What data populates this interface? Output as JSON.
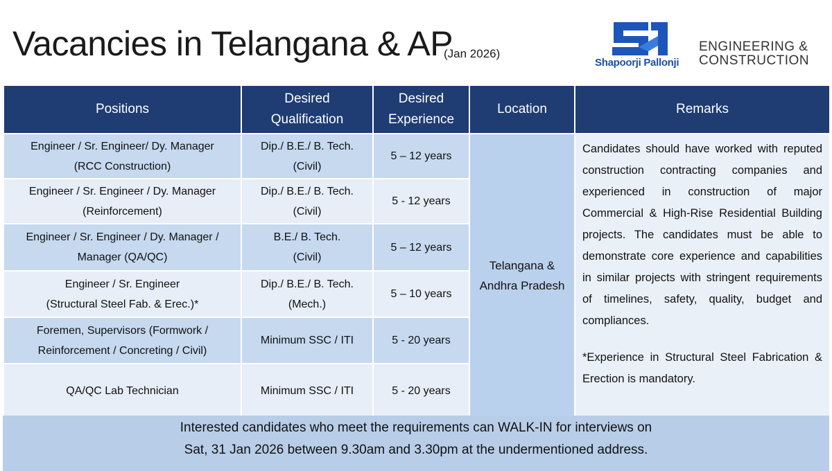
{
  "header": {
    "title": "Vacancies in Telangana & AP",
    "subtitle": "(Jan 2026)",
    "logo_name": "Shapoorji Pallonji",
    "division": [
      "ENGINEERING &",
      "CONSTRUCTION"
    ]
  },
  "table": {
    "columns": [
      [
        "Positions"
      ],
      [
        "Desired",
        "Qualification"
      ],
      [
        "Desired",
        "Experience"
      ],
      [
        "Location"
      ],
      [
        "Remarks"
      ]
    ],
    "rows": [
      {
        "position": [
          "Engineer / Sr. Engineer/ Dy. Manager",
          "(RCC Construction)"
        ],
        "qualification": [
          "Dip./ B.E./ B. Tech.",
          "(Civil)"
        ],
        "experience": "5 – 12 years"
      },
      {
        "position": [
          "Engineer / Sr. Engineer / Dy. Manager",
          "(Reinforcement)"
        ],
        "qualification": [
          "Dip./ B.E./ B. Tech.",
          "(Civil)"
        ],
        "experience": "5 - 12 years"
      },
      {
        "position": [
          "Engineer / Sr. Engineer / Dy. Manager /",
          "Manager (QA/QC)"
        ],
        "qualification": [
          "B.E./ B. Tech.",
          "(Civil)"
        ],
        "experience": "5 – 12 years"
      },
      {
        "position": [
          "Engineer / Sr. Engineer",
          "(Structural Steel Fab. & Erec.)*"
        ],
        "qualification": [
          "Dip./ B.E./ B. Tech.",
          "(Mech.)"
        ],
        "experience": "5 – 10 years"
      },
      {
        "position": [
          "Foremen, Supervisors (Formwork /",
          "Reinforcement / Concreting / Civil)"
        ],
        "qualification": [
          "Minimum SSC / ITI"
        ],
        "experience": "5 - 20 years"
      },
      {
        "position": [
          "QA/QC Lab Technician"
        ],
        "qualification": [
          "Minimum SSC / ITI"
        ],
        "experience": "5 - 20 years"
      }
    ],
    "location": [
      "Telangana &",
      "Andhra Pradesh"
    ],
    "remarks": "Candidates should have worked with reputed construction contracting companies and experienced in construction of major Commercial & High-Rise Residential Building projects. The candidates must be able to demonstrate core experience and capabilities in similar projects with stringent requirements of timelines, safety, quality, budget and compliances.",
    "note": "*Experience in Structural Steel Fabrication & Erection is mandatory."
  },
  "footer": [
    "Interested candidates who meet the requirements can WALK-IN for interviews on",
    "Sat, 31 Jan 2026 between 9.30am and 3.30pm at the undermentioned address."
  ]
}
